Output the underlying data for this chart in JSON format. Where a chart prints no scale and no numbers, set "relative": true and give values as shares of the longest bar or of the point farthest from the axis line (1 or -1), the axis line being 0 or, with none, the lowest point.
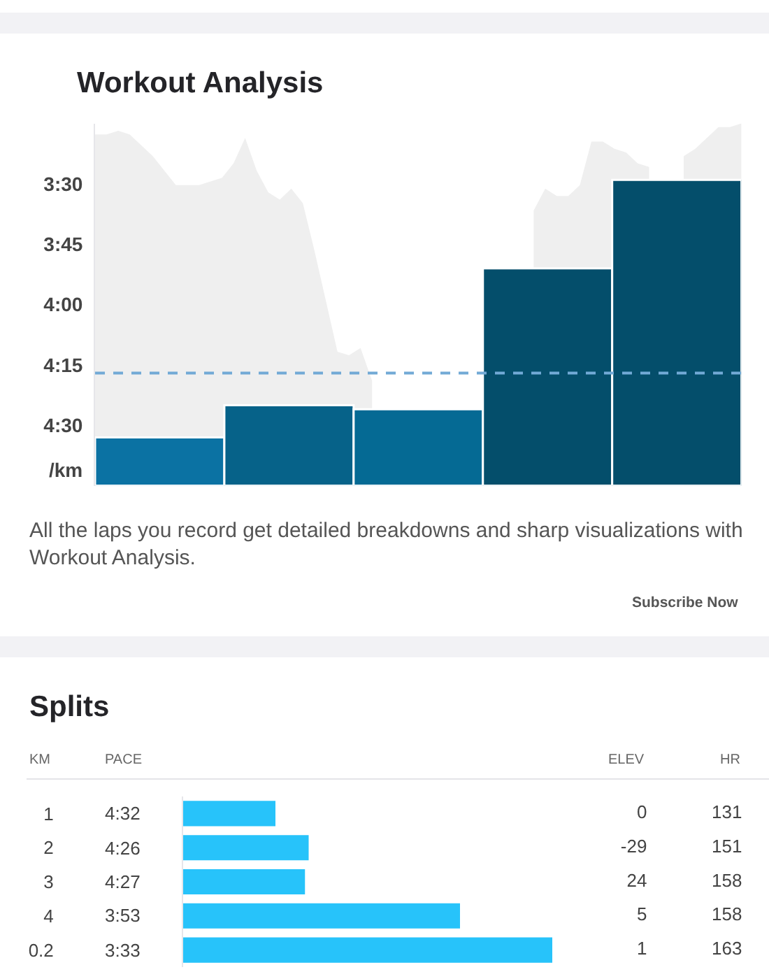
{
  "chart_data": [
    {
      "type": "area",
      "relative": true,
      "color": "#efefef",
      "categories": [
        null,
        null,
        null,
        null,
        null,
        null,
        null,
        null,
        null,
        null,
        null,
        null,
        null,
        null,
        null,
        null,
        null,
        null,
        null,
        null,
        null,
        null,
        null,
        null,
        null,
        null,
        null,
        null,
        null,
        null,
        null,
        null,
        null,
        null,
        null,
        null,
        null,
        null,
        null,
        null,
        null,
        null,
        null,
        null,
        null,
        null,
        null,
        null,
        null,
        null,
        null,
        null,
        null,
        null,
        null,
        null,
        null
      ],
      "values": [
        0.97,
        0.97,
        0.98,
        0.97,
        0.94,
        0.91,
        0.87,
        0.83,
        0.83,
        0.83,
        0.84,
        0.85,
        0.89,
        0.96,
        0.87,
        0.81,
        0.79,
        0.82,
        0.78,
        0.65,
        0.51,
        0.37,
        0.36,
        0.38,
        0.29,
        null,
        null,
        null,
        null,
        null,
        null,
        null,
        null,
        null,
        null,
        null,
        null,
        null,
        0.76,
        0.82,
        0.8,
        0.8,
        0.83,
        0.95,
        0.95,
        0.93,
        0.92,
        0.89,
        0.88,
        null,
        null,
        0.91,
        0.93,
        0.96,
        0.99,
        0.99,
        1.0
      ]
    },
    {
      "type": "bar",
      "title": "Workout Analysis",
      "ylabel": "/km",
      "categories": [
        null,
        null,
        null,
        null,
        null
      ],
      "base": [
        285,
        285,
        285,
        285,
        285
      ],
      "values": [
        -12,
        -20,
        -19,
        -54,
        -76
      ],
      "colors": [
        "#0b72a3",
        "#066289",
        "#056a94",
        "#044e6b",
        "#044e6b"
      ],
      "ylim": [
        285,
        195
      ],
      "yticks": [
        {
          "value": 210,
          "label": "3:30"
        },
        {
          "value": 225,
          "label": "3:45"
        },
        {
          "value": 240,
          "label": "4:00"
        },
        {
          "value": 255,
          "label": "4:15"
        },
        {
          "value": 270,
          "label": "4:30"
        }
      ],
      "ref_lines": [
        {
          "axis": "y",
          "value": 257,
          "color": "#72aad6",
          "line_style": "dashed"
        }
      ],
      "annotations": [
        "All the laps you record get detailed breakdowns and sharp visualizations with Workout Analysis.",
        "Subscribe Now"
      ]
    },
    {
      "type": "bar",
      "orientation": "horizontal",
      "relative": true,
      "title": "Splits",
      "ylabel": "KM",
      "categories": [
        "1",
        "2",
        "3",
        "4",
        "0.2"
      ],
      "values": [
        0.25,
        0.34,
        0.33,
        0.75,
        1
      ],
      "color": "#27c3fa"
    },
    {
      "type": "other",
      "title": "PACE",
      "categories": [
        "4:32",
        "4:26",
        "4:27",
        "3:53",
        "3:33"
      ]
    },
    {
      "type": "other",
      "title": "ELEV",
      "values": [
        0,
        -29,
        24,
        5,
        1
      ],
      "data_labels": true
    },
    {
      "type": "other",
      "title": "HR",
      "values": [
        131,
        151,
        158,
        158,
        163
      ],
      "data_labels": true
    }
  ]
}
